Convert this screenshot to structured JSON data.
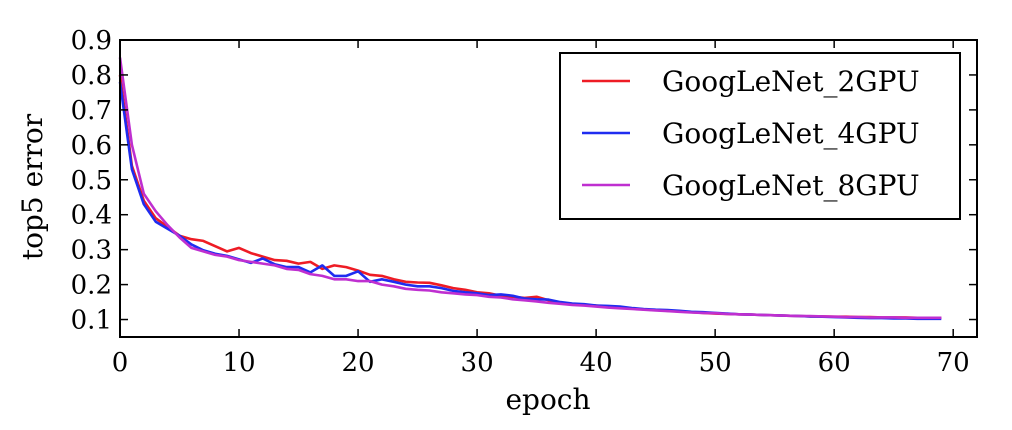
{
  "chart_data": {
    "type": "line",
    "title": "",
    "xlabel": "epoch",
    "ylabel": "top5 error",
    "xlim": [
      0,
      72
    ],
    "ylim": [
      0.05,
      0.9
    ],
    "xticks": [
      0,
      10,
      20,
      30,
      40,
      50,
      60,
      70
    ],
    "yticks": [
      0.1,
      0.2,
      0.3,
      0.4,
      0.5,
      0.6,
      0.7,
      0.8,
      0.9
    ],
    "x_tick_labels": [
      "0",
      "10",
      "20",
      "30",
      "40",
      "50",
      "60",
      "70"
    ],
    "y_tick_labels": [
      "0.1",
      "0.2",
      "0.3",
      "0.4",
      "0.5",
      "0.6",
      "0.7",
      "0.8",
      "0.9"
    ],
    "grid": false,
    "legend_position": "top-right",
    "series": [
      {
        "name": "GoogLeNet_2GPU",
        "color": "#ee1c25",
        "x": [
          0,
          1,
          2,
          3,
          4,
          5,
          6,
          7,
          8,
          9,
          10,
          11,
          12,
          13,
          14,
          15,
          16,
          17,
          18,
          19,
          20,
          21,
          22,
          23,
          24,
          25,
          26,
          27,
          28,
          29,
          30,
          31,
          32,
          33,
          34,
          35,
          36,
          37,
          38,
          39,
          40,
          41,
          42,
          43,
          44,
          45,
          46,
          47,
          48,
          49,
          50,
          51,
          52,
          53,
          54,
          55,
          56,
          57,
          58,
          59,
          60,
          61,
          62,
          63,
          64,
          65,
          66,
          67,
          68,
          69
        ],
        "values": [
          0.8,
          0.54,
          0.44,
          0.39,
          0.365,
          0.34,
          0.33,
          0.325,
          0.31,
          0.295,
          0.305,
          0.29,
          0.28,
          0.27,
          0.268,
          0.26,
          0.265,
          0.245,
          0.255,
          0.25,
          0.24,
          0.228,
          0.225,
          0.215,
          0.208,
          0.206,
          0.205,
          0.198,
          0.19,
          0.185,
          0.178,
          0.175,
          0.168,
          0.165,
          0.162,
          0.165,
          0.155,
          0.148,
          0.144,
          0.142,
          0.14,
          0.137,
          0.134,
          0.132,
          0.129,
          0.127,
          0.125,
          0.123,
          0.121,
          0.119,
          0.117,
          0.116,
          0.115,
          0.114,
          0.113,
          0.112,
          0.111,
          0.11,
          0.109,
          0.109,
          0.108,
          0.108,
          0.107,
          0.107,
          0.106,
          0.106,
          0.106,
          0.105,
          0.105,
          0.105
        ]
      },
      {
        "name": "GoogLeNet_4GPU",
        "color": "#1f2cf0",
        "x": [
          0,
          1,
          2,
          3,
          4,
          5,
          6,
          7,
          8,
          9,
          10,
          11,
          12,
          13,
          14,
          15,
          16,
          17,
          18,
          19,
          20,
          21,
          22,
          23,
          24,
          25,
          26,
          27,
          28,
          29,
          30,
          31,
          32,
          33,
          34,
          35,
          36,
          37,
          38,
          39,
          40,
          41,
          42,
          43,
          44,
          45,
          46,
          47,
          48,
          49,
          50,
          51,
          52,
          53,
          54,
          55,
          56,
          57,
          58,
          59,
          60,
          61,
          62,
          63,
          64,
          65,
          66,
          67,
          68,
          69
        ],
        "values": [
          0.78,
          0.53,
          0.43,
          0.38,
          0.36,
          0.34,
          0.315,
          0.298,
          0.288,
          0.282,
          0.272,
          0.262,
          0.275,
          0.258,
          0.25,
          0.25,
          0.235,
          0.255,
          0.225,
          0.225,
          0.238,
          0.208,
          0.215,
          0.208,
          0.2,
          0.195,
          0.195,
          0.19,
          0.182,
          0.178,
          0.175,
          0.17,
          0.172,
          0.168,
          0.16,
          0.158,
          0.157,
          0.15,
          0.146,
          0.144,
          0.14,
          0.139,
          0.137,
          0.133,
          0.13,
          0.128,
          0.127,
          0.125,
          0.122,
          0.121,
          0.119,
          0.117,
          0.115,
          0.114,
          0.113,
          0.112,
          0.111,
          0.11,
          0.109,
          0.108,
          0.107,
          0.106,
          0.105,
          0.104,
          0.104,
          0.103,
          0.103,
          0.102,
          0.102,
          0.102
        ]
      },
      {
        "name": "GoogLeNet_8GPU",
        "color": "#bf2fd0",
        "x": [
          0,
          1,
          2,
          3,
          4,
          5,
          6,
          7,
          8,
          9,
          10,
          11,
          12,
          13,
          14,
          15,
          16,
          17,
          18,
          19,
          20,
          21,
          22,
          23,
          24,
          25,
          26,
          27,
          28,
          29,
          30,
          31,
          32,
          33,
          34,
          35,
          36,
          37,
          38,
          39,
          40,
          41,
          42,
          43,
          44,
          45,
          46,
          47,
          48,
          49,
          50,
          51,
          52,
          53,
          54,
          55,
          56,
          57,
          58,
          59,
          60,
          61,
          62,
          63,
          64,
          65,
          66,
          67,
          68,
          69
        ],
        "values": [
          0.85,
          0.6,
          0.46,
          0.41,
          0.37,
          0.335,
          0.305,
          0.295,
          0.285,
          0.28,
          0.27,
          0.265,
          0.26,
          0.255,
          0.245,
          0.242,
          0.23,
          0.225,
          0.215,
          0.215,
          0.21,
          0.21,
          0.2,
          0.195,
          0.188,
          0.185,
          0.183,
          0.178,
          0.175,
          0.172,
          0.17,
          0.165,
          0.163,
          0.158,
          0.155,
          0.152,
          0.148,
          0.145,
          0.142,
          0.14,
          0.137,
          0.134,
          0.132,
          0.13,
          0.128,
          0.126,
          0.124,
          0.122,
          0.12,
          0.119,
          0.118,
          0.116,
          0.115,
          0.114,
          0.113,
          0.112,
          0.111,
          0.11,
          0.11,
          0.109,
          0.108,
          0.107,
          0.107,
          0.106,
          0.106,
          0.106,
          0.105,
          0.105,
          0.105,
          0.105
        ]
      }
    ]
  }
}
